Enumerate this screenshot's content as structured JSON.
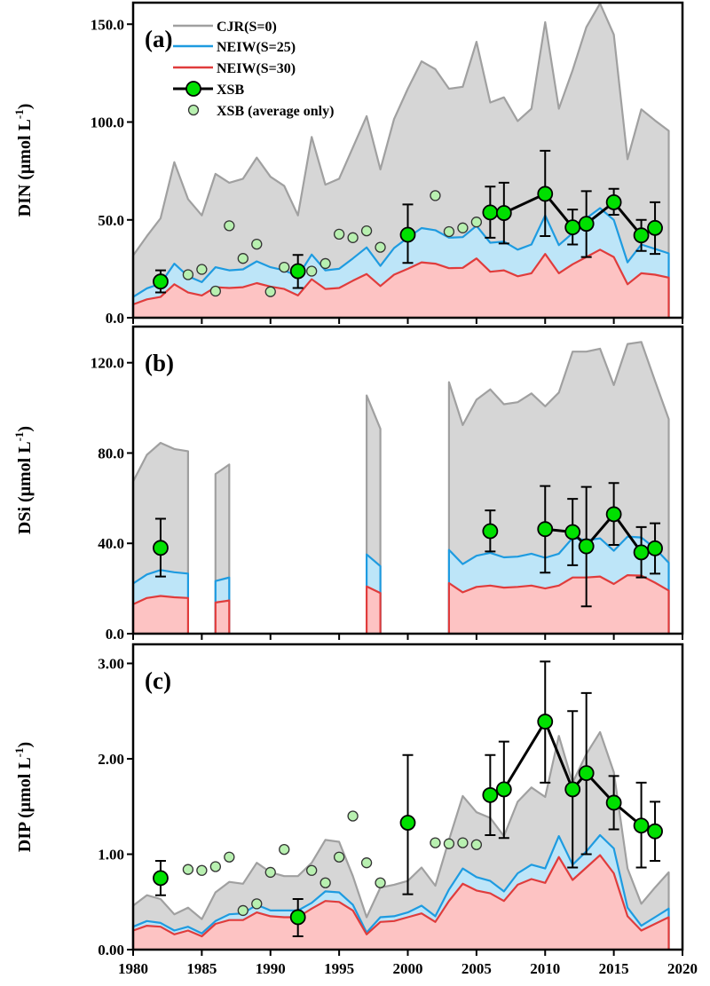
{
  "legend": {
    "items": [
      {
        "label": "CJR(S=0)",
        "kind": "line",
        "color": "#a0a0a0"
      },
      {
        "label": "NEIW(S=25)",
        "kind": "line",
        "color": "#1e9be0"
      },
      {
        "label": "NEIW(S=30)",
        "kind": "line",
        "color": "#e03c3c"
      },
      {
        "label": "XSB",
        "kind": "line-marker",
        "color": "#00e000"
      },
      {
        "label": "XSB (average only)",
        "kind": "marker",
        "color": "#b8f0b0"
      }
    ],
    "placement": "top-left of panel (a)"
  },
  "colors": {
    "cjr_fill": "#d6d6d6",
    "cjr_line": "#a0a0a0",
    "neiw25_fill": "#bde5f8",
    "neiw25_line": "#1e9be0",
    "neiw30_fill": "#fdc3c3",
    "neiw30_line": "#e03c3c",
    "xsb_marker": "#00e000",
    "xsb_avg_marker": "#b8f0b0"
  },
  "x_axis": {
    "ticks": [
      "1980",
      "1985",
      "1990",
      "1995",
      "2000",
      "2005",
      "2010",
      "2015",
      "2020"
    ],
    "xlim": [
      1980,
      2020
    ]
  },
  "chart_data": [
    {
      "type": "area",
      "panel_label": "(a)",
      "ylabel": "DIN (μmol L",
      "ylabel_sup": "-1",
      "ylabel_close": ")",
      "ylim": [
        0,
        161
      ],
      "yticks": [
        0,
        50,
        100,
        150
      ],
      "ytick_labels": [
        "0.0",
        "50.0",
        "100.0",
        "150.0"
      ],
      "years_start": 1980,
      "series": [
        {
          "name": "CJR(S=0)",
          "values": [
            31.8,
            41.7,
            50.8,
            79.5,
            60.6,
            52.3,
            73.5,
            69,
            71,
            81.8,
            72,
            67.4,
            52.3,
            92.4,
            68,
            71,
            87,
            103,
            75.8,
            101.5,
            117,
            131,
            127,
            117,
            118,
            141,
            110,
            112.6,
            100.5,
            106.8,
            151,
            106.8,
            126.5,
            148.5,
            160.6,
            144.7,
            81,
            106.5,
            100.8,
            95.5
          ]
        },
        {
          "name": "NEIW(S=25)",
          "values": [
            10.6,
            15,
            17.4,
            27.6,
            21.2,
            18.2,
            25.8,
            24.2,
            24.7,
            28.8,
            25.8,
            24.2,
            21.2,
            32.3,
            24.2,
            25,
            30.3,
            35.9,
            26.5,
            35.6,
            40.9,
            45.8,
            44.7,
            40.9,
            41.2,
            47,
            38.3,
            38.9,
            34.8,
            37.4,
            52.3,
            37.1,
            43.2,
            50.8,
            56,
            50,
            28.3,
            37.4,
            35.2,
            32.9
          ]
        },
        {
          "name": "NEIW(S=30)",
          "values": [
            6.8,
            9.4,
            10.6,
            17.1,
            12.9,
            11.4,
            15.6,
            15.2,
            15.6,
            17.7,
            15.9,
            14.7,
            11.4,
            19.7,
            14.7,
            15.2,
            18.9,
            22.3,
            16.2,
            22,
            25,
            28.3,
            27.6,
            25.3,
            25.5,
            30.3,
            23.5,
            24.2,
            21.2,
            22.7,
            32.6,
            22.7,
            27.3,
            31,
            34.8,
            31,
            17.1,
            22.7,
            22,
            20.5
          ]
        }
      ],
      "xsb": [
        {
          "year": 1982,
          "value": 18.5,
          "upper": 24.2,
          "lower": 12.9
        },
        {
          "year": 1992,
          "value": 23.8,
          "upper": 32.1,
          "lower": 15.2
        },
        {
          "year": 2000,
          "value": 42.4,
          "upper": 57.9,
          "lower": 28
        },
        {
          "year": 2006,
          "value": 53.8,
          "upper": 67,
          "lower": 40.9
        },
        {
          "year": 2007,
          "value": 53.5,
          "upper": 69,
          "lower": 37.9
        },
        {
          "year": 2010,
          "value": 63.3,
          "upper": 85.3,
          "lower": 41.7
        },
        {
          "year": 2012,
          "value": 46.2,
          "upper": 55.3,
          "lower": 37.4
        },
        {
          "year": 2013,
          "value": 48,
          "upper": 64.7,
          "lower": 31
        },
        {
          "year": 2015,
          "value": 59,
          "upper": 65.9,
          "lower": 52.6
        },
        {
          "year": 2017,
          "value": 42.1,
          "upper": 50,
          "lower": 34.1
        },
        {
          "year": 2018,
          "value": 45.9,
          "upper": 59,
          "lower": 32.6
        }
      ],
      "xsb_line_years": [
        2006,
        2007,
        2010,
        2012,
        2013,
        2015,
        2017,
        2018
      ],
      "xsb_avg": [
        {
          "year": 1984,
          "value": 22
        },
        {
          "year": 1985,
          "value": 24.7
        },
        {
          "year": 1986,
          "value": 13.6
        },
        {
          "year": 1987,
          "value": 47
        },
        {
          "year": 1988,
          "value": 30.3
        },
        {
          "year": 1989,
          "value": 37.6
        },
        {
          "year": 1990,
          "value": 13.3
        },
        {
          "year": 1991,
          "value": 25.8
        },
        {
          "year": 1993,
          "value": 23.8
        },
        {
          "year": 1994,
          "value": 27.7
        },
        {
          "year": 1995,
          "value": 42.7
        },
        {
          "year": 1996,
          "value": 40.9
        },
        {
          "year": 1997,
          "value": 44.4
        },
        {
          "year": 1998,
          "value": 36
        },
        {
          "year": 2002,
          "value": 62.4
        },
        {
          "year": 2003,
          "value": 44
        },
        {
          "year": 2004,
          "value": 45.9
        },
        {
          "year": 2005,
          "value": 48.9
        }
      ]
    },
    {
      "type": "area",
      "panel_label": "(b)",
      "ylabel": "DSi (μmol L",
      "ylabel_sup": "-1",
      "ylabel_close": ")",
      "ylim": [
        0,
        136
      ],
      "yticks": [
        0,
        40,
        80,
        120
      ],
      "ytick_labels": [
        "0.0",
        "40.0",
        "80.0",
        "120.0"
      ],
      "years_start": 1980,
      "series": [
        {
          "name": "CJR(S=0)",
          "values": [
            67.4,
            79.2,
            84.5,
            81.8,
            80.8,
            null,
            70.7,
            74.9,
            null,
            null,
            null,
            null,
            null,
            null,
            null,
            null,
            null,
            105.5,
            90.7,
            null,
            null,
            null,
            null,
            111.4,
            92.4,
            103.6,
            108.2,
            101.6,
            102.5,
            106.4,
            100.7,
            106.8,
            124.9,
            124.9,
            126.2,
            110.1,
            128.3,
            129.2,
            112,
            95
          ]
        },
        {
          "name": "NEIW(S=25)",
          "values": [
            22.2,
            26.2,
            28.2,
            27.2,
            26.6,
            null,
            23.3,
            24.9,
            null,
            null,
            null,
            null,
            null,
            null,
            null,
            null,
            null,
            35.1,
            29.9,
            null,
            null,
            null,
            null,
            37.1,
            30.8,
            34.5,
            35.8,
            33.8,
            34.1,
            35.4,
            33.6,
            35.4,
            42.4,
            41.4,
            42.2,
            36.7,
            43,
            42.6,
            37.8,
            31.4
          ]
        },
        {
          "name": "NEIW(S=30)",
          "values": [
            13,
            15.8,
            16.7,
            16.1,
            15.8,
            null,
            13.8,
            14.7,
            null,
            null,
            null,
            null,
            null,
            null,
            null,
            null,
            null,
            20.9,
            18,
            null,
            null,
            null,
            null,
            22.4,
            18.3,
            20.7,
            21.3,
            20.4,
            20.7,
            21.3,
            20,
            21.3,
            24.9,
            24.9,
            25.3,
            22,
            25.9,
            25.7,
            22.6,
            19.1
          ]
        }
      ],
      "xsb": [
        {
          "year": 1982,
          "value": 38,
          "upper": 50.9,
          "lower": 25.3
        },
        {
          "year": 2006,
          "value": 45.4,
          "upper": 54.6,
          "lower": 36.4
        },
        {
          "year": 2010,
          "value": 46.3,
          "upper": 65.4,
          "lower": 27
        },
        {
          "year": 2012,
          "value": 45,
          "upper": 59.7,
          "lower": 30.3
        },
        {
          "year": 2013,
          "value": 38.7,
          "upper": 65,
          "lower": 12.1
        },
        {
          "year": 2015,
          "value": 52.9,
          "upper": 66.7,
          "lower": 39.3
        },
        {
          "year": 2017,
          "value": 36,
          "upper": 47.2,
          "lower": 24.9
        },
        {
          "year": 2018,
          "value": 37.8,
          "upper": 48.9,
          "lower": 26.6
        }
      ],
      "xsb_line_years": [
        2010,
        2012,
        2013,
        2015,
        2017,
        2018
      ],
      "xsb_avg": []
    },
    {
      "type": "area",
      "panel_label": "(c)",
      "ylabel": "DIP (μmol L",
      "ylabel_sup": "-1",
      "ylabel_close": ")",
      "ylim": [
        0,
        3.2
      ],
      "yticks": [
        0,
        1,
        2,
        3
      ],
      "ytick_labels": [
        "0.00",
        "1.00",
        "2.00",
        "3.00"
      ],
      "years_start": 1980,
      "series": [
        {
          "name": "CJR(S=0)",
          "values": [
            0.46,
            0.57,
            0.53,
            0.37,
            0.44,
            0.32,
            0.6,
            0.71,
            0.69,
            0.91,
            0.81,
            0.77,
            0.77,
            0.91,
            1.15,
            1.13,
            0.77,
            0.34,
            0.65,
            0.68,
            0.72,
            0.86,
            0.67,
            1.15,
            1.61,
            1.44,
            1.38,
            1.19,
            1.55,
            1.7,
            1.6,
            2.24,
            1.75,
            2.05,
            2.28,
            1.86,
            0.85,
            0.48,
            0.65,
            0.81
          ]
        },
        {
          "name": "NEIW(S=25)",
          "values": [
            0.24,
            0.3,
            0.28,
            0.2,
            0.24,
            0.17,
            0.3,
            0.37,
            0.38,
            0.47,
            0.41,
            0.41,
            0.41,
            0.49,
            0.61,
            0.6,
            0.47,
            0.18,
            0.34,
            0.35,
            0.39,
            0.46,
            0.35,
            0.63,
            0.85,
            0.76,
            0.72,
            0.61,
            0.8,
            0.89,
            0.85,
            1.19,
            0.89,
            1.03,
            1.2,
            1.06,
            0.44,
            0.25,
            0.34,
            0.43
          ]
        },
        {
          "name": "NEIW(S=30)",
          "values": [
            0.2,
            0.25,
            0.24,
            0.16,
            0.2,
            0.14,
            0.27,
            0.31,
            0.31,
            0.39,
            0.35,
            0.34,
            0.34,
            0.43,
            0.51,
            0.5,
            0.41,
            0.16,
            0.29,
            0.3,
            0.34,
            0.38,
            0.29,
            0.51,
            0.69,
            0.62,
            0.59,
            0.51,
            0.68,
            0.74,
            0.7,
            0.97,
            0.73,
            0.86,
            0.99,
            0.8,
            0.35,
            0.2,
            0.27,
            0.34
          ]
        }
      ],
      "xsb": [
        {
          "year": 1982,
          "value": 0.75,
          "upper": 0.93,
          "lower": 0.57
        },
        {
          "year": 1992,
          "value": 0.34,
          "upper": 0.53,
          "lower": 0.14
        },
        {
          "year": 2000,
          "value": 1.33,
          "upper": 2.04,
          "lower": 0.58
        },
        {
          "year": 2006,
          "value": 1.62,
          "upper": 2.04,
          "lower": 1.2
        },
        {
          "year": 2007,
          "value": 1.68,
          "upper": 2.18,
          "lower": 1.17
        },
        {
          "year": 2010,
          "value": 2.39,
          "upper": 3.02,
          "lower": 1.75
        },
        {
          "year": 2012,
          "value": 1.68,
          "upper": 2.5,
          "lower": 0.86
        },
        {
          "year": 2013,
          "value": 1.85,
          "upper": 2.69,
          "lower": 1.0
        },
        {
          "year": 2015,
          "value": 1.54,
          "upper": 1.82,
          "lower": 1.26
        },
        {
          "year": 2017,
          "value": 1.3,
          "upper": 1.75,
          "lower": 0.86
        },
        {
          "year": 2018,
          "value": 1.24,
          "upper": 1.55,
          "lower": 0.93
        }
      ],
      "xsb_line_years": [
        2006,
        2007,
        2010,
        2012,
        2013,
        2015,
        2017,
        2018
      ],
      "xsb_avg": [
        {
          "year": 1984,
          "value": 0.84
        },
        {
          "year": 1985,
          "value": 0.83
        },
        {
          "year": 1986,
          "value": 0.87
        },
        {
          "year": 1987,
          "value": 0.97
        },
        {
          "year": 1988,
          "value": 0.41
        },
        {
          "year": 1989,
          "value": 0.48
        },
        {
          "year": 1990,
          "value": 0.81
        },
        {
          "year": 1991,
          "value": 1.05
        },
        {
          "year": 1993,
          "value": 0.83
        },
        {
          "year": 1994,
          "value": 0.7
        },
        {
          "year": 1995,
          "value": 0.97
        },
        {
          "year": 1996,
          "value": 1.4
        },
        {
          "year": 1997,
          "value": 0.91
        },
        {
          "year": 1998,
          "value": 0.7
        },
        {
          "year": 2002,
          "value": 1.12
        },
        {
          "year": 2003,
          "value": 1.11
        },
        {
          "year": 2004,
          "value": 1.12
        },
        {
          "year": 2005,
          "value": 1.1
        }
      ]
    }
  ]
}
